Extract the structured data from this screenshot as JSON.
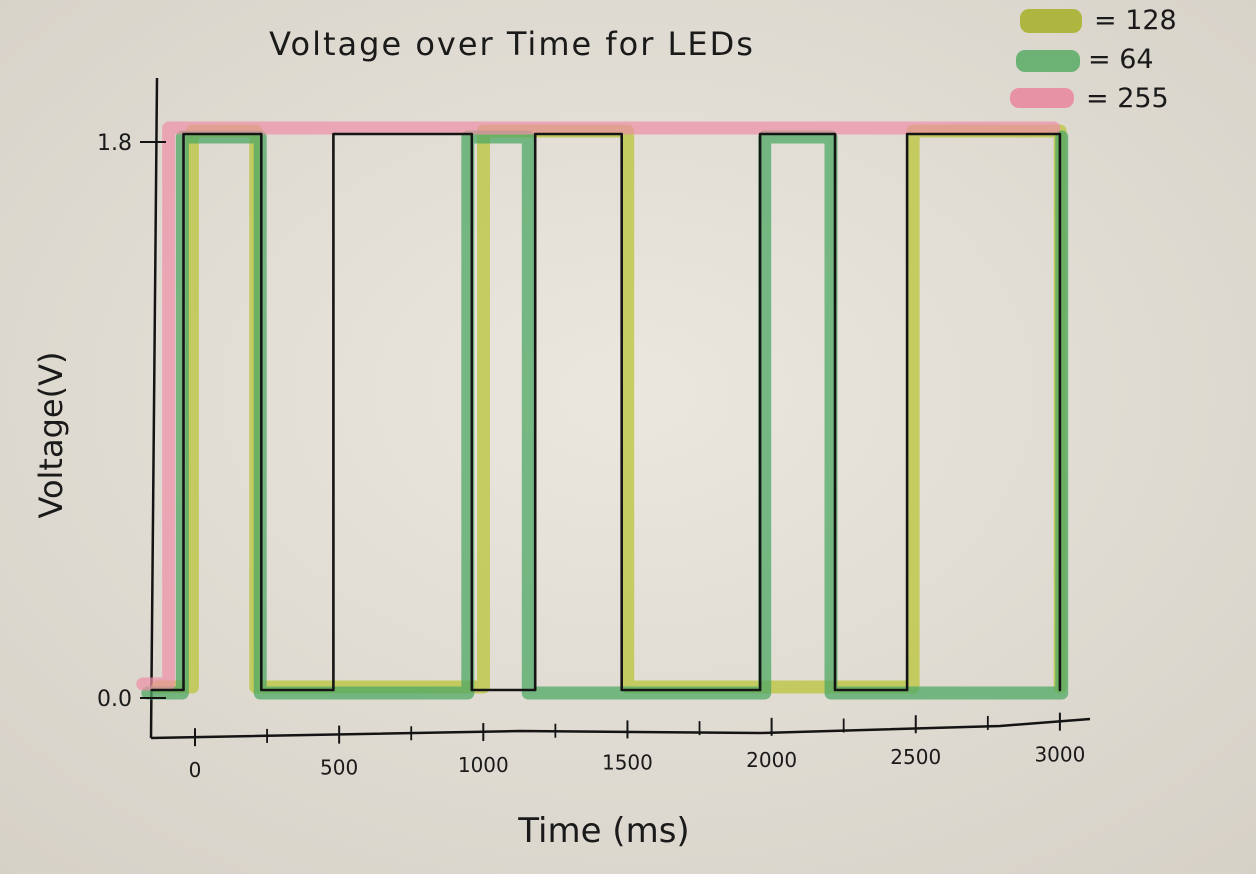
{
  "chart_data": {
    "type": "line",
    "title": "Voltage over Time for LEDs",
    "xlabel": "Time (ms)",
    "ylabel": "Voltage(V)",
    "xlim": [
      -150,
      3100
    ],
    "ylim": [
      0,
      1.8
    ],
    "x_ticks": [
      {
        "value": 0,
        "label": "0"
      },
      {
        "value": 500,
        "label": "500"
      },
      {
        "value": 1000,
        "label": "1000"
      },
      {
        "value": 1500,
        "label": "1500"
      },
      {
        "value": 2000,
        "label": "2000"
      },
      {
        "value": 2500,
        "label": "2500"
      },
      {
        "value": 3000,
        "label": "3000"
      }
    ],
    "y_ticks": [
      {
        "value": 0,
        "label": "0.0"
      },
      {
        "value": 1.8,
        "label": "1.8"
      }
    ],
    "legend": {
      "placement": "top-right",
      "entries": [
        {
          "label": "= 128",
          "color": "#a8b230"
        },
        {
          "label": "= 64",
          "color": "#5fae6a"
        },
        {
          "label": "= 255",
          "color": "#e98aa0"
        }
      ]
    },
    "series": [
      {
        "label": "= 128",
        "color": "#b9c43a",
        "x": [
          -150,
          -30,
          -30,
          190,
          190,
          980,
          980,
          1480,
          1480,
          2470,
          2470,
          2980,
          2980
        ],
        "y": [
          0,
          0,
          1.8,
          1.8,
          0,
          0,
          1.8,
          1.8,
          0,
          0,
          1.8,
          1.8,
          0
        ]
      },
      {
        "label": "= 64",
        "color": "#4fa864",
        "x": [
          -150,
          -30,
          -30,
          240,
          240,
          960,
          960,
          1170,
          1170,
          1990,
          1990,
          2220,
          2220,
          3020,
          3020
        ],
        "y": [
          0,
          0,
          1.8,
          1.8,
          0,
          0,
          1.8,
          1.8,
          0,
          0,
          1.8,
          1.8,
          0,
          0,
          1.8
        ]
      },
      {
        "label": "= 255",
        "color": "#ee8fa6",
        "x": [
          -150,
          -60,
          -60,
          3010
        ],
        "y": [
          0,
          0,
          1.8,
          1.8
        ]
      },
      {
        "label": "",
        "color": "#151515",
        "x": [
          -150,
          -40,
          -40,
          230,
          230,
          480,
          480,
          960,
          960,
          1180,
          1180,
          1480,
          1480,
          1960,
          1960,
          2220,
          2220,
          2470,
          2470,
          3000,
          3000
        ],
        "y": [
          0,
          0,
          1.8,
          1.8,
          0,
          0,
          1.8,
          1.8,
          0,
          0,
          1.8,
          1.8,
          0,
          0,
          1.8,
          1.8,
          0,
          0,
          1.8,
          1.8,
          0
        ]
      }
    ]
  }
}
